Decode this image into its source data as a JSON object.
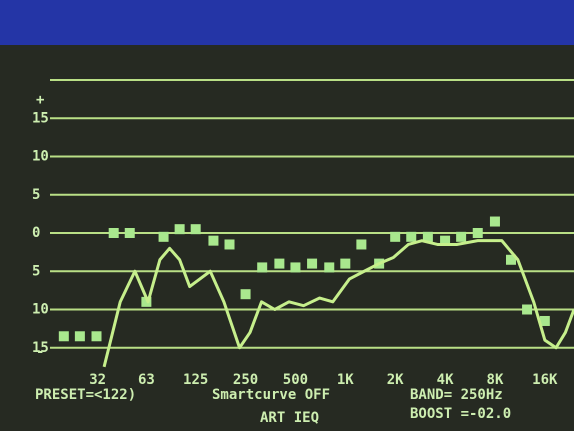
{
  "chart_data": {
    "type": "line",
    "x_scale": "log",
    "xlim": [
      12.5,
      24000
    ],
    "ylim": [
      -20,
      20
    ],
    "xticks": [
      32,
      63,
      125,
      250,
      500,
      {
        "value": 1000,
        "label": "1K"
      },
      {
        "value": 2000,
        "label": "2K"
      },
      {
        "value": 4000,
        "label": "4K"
      },
      {
        "value": 8000,
        "label": "8K"
      },
      {
        "value": 16000,
        "label": "16K"
      }
    ],
    "yticks": [
      15,
      10,
      5,
      0,
      {
        "value": -5,
        "label": "5"
      },
      {
        "value": -10,
        "label": "10"
      },
      {
        "value": -15,
        "label": "15"
      }
    ],
    "y_end_labels": [
      "+",
      "-"
    ],
    "grid": true,
    "series": [
      {
        "style": "markers",
        "color": "#a9e88e",
        "x": [
          20,
          25,
          31.5,
          40,
          50,
          63,
          80,
          100,
          125,
          160,
          200,
          250,
          315,
          400,
          500,
          630,
          800,
          1000,
          1250,
          1600,
          2000,
          2500,
          3150,
          4000,
          5000,
          6300,
          8000,
          10000,
          12500,
          16000
        ],
        "values": [
          -13.5,
          -13.5,
          -13.5,
          0,
          0,
          -9,
          -0.5,
          0.5,
          0.5,
          -1,
          -1.5,
          -8,
          -4.5,
          -4,
          -4.5,
          -4,
          -4.5,
          -4,
          -1.5,
          -4,
          -0.5,
          -0.5,
          -0.5,
          -1,
          -0.5,
          0,
          1.5,
          -3.5,
          -10,
          -11.5
        ]
      },
      {
        "style": "line",
        "color": "#c6ef8c",
        "x": [
          35,
          43.8,
          53.7,
          64.5,
          76,
          87,
          100,
          115,
          153,
          185,
          230,
          266,
          312,
          375,
          457,
          560,
          700,
          840,
          1060,
          1300,
          1600,
          1950,
          2400,
          2900,
          3600,
          4700,
          6300,
          8800,
          11000,
          13700,
          16000,
          18700,
          21300,
          24000
        ],
        "values": [
          -17.5,
          -9,
          -5,
          -9,
          -3.5,
          -2,
          -3.5,
          -7,
          -5,
          -9,
          -15,
          -13,
          -9,
          -10,
          -9,
          -9.5,
          -8.5,
          -9,
          -6,
          -5,
          -4,
          -3.2,
          -1.5,
          -1,
          -1.5,
          -1.5,
          -1,
          -1,
          -3.5,
          -9,
          -14,
          -15,
          -13,
          -10
        ]
      }
    ],
    "status": {
      "preset": "PRESET=<122)",
      "smartcurve": "Smartcurve OFF",
      "mode": "ART IEQ",
      "band": "BAND= 250Hz",
      "boost": "BOOST =-02.0"
    }
  }
}
